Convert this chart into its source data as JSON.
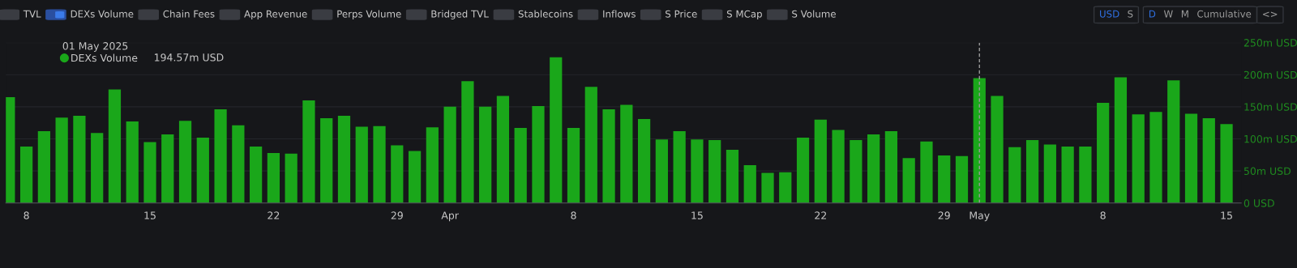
{
  "chart_data": {
    "type": "bar",
    "x": [
      "2025-03-07",
      "2025-03-08",
      "2025-03-09",
      "2025-03-10",
      "2025-03-11",
      "2025-03-12",
      "2025-03-13",
      "2025-03-14",
      "2025-03-15",
      "2025-03-16",
      "2025-03-17",
      "2025-03-18",
      "2025-03-19",
      "2025-03-20",
      "2025-03-21",
      "2025-03-22",
      "2025-03-23",
      "2025-03-24",
      "2025-03-25",
      "2025-03-26",
      "2025-03-27",
      "2025-03-28",
      "2025-03-29",
      "2025-03-30",
      "2025-03-31",
      "2025-04-01",
      "2025-04-02",
      "2025-04-03",
      "2025-04-04",
      "2025-04-05",
      "2025-04-06",
      "2025-04-07",
      "2025-04-08",
      "2025-04-09",
      "2025-04-10",
      "2025-04-11",
      "2025-04-12",
      "2025-04-13",
      "2025-04-14",
      "2025-04-15",
      "2025-04-16",
      "2025-04-17",
      "2025-04-18",
      "2025-04-19",
      "2025-04-20",
      "2025-04-21",
      "2025-04-22",
      "2025-04-23",
      "2025-04-24",
      "2025-04-25",
      "2025-04-26",
      "2025-04-27",
      "2025-04-28",
      "2025-04-29",
      "2025-04-30",
      "2025-05-01",
      "2025-05-02",
      "2025-05-03",
      "2025-05-04",
      "2025-05-05",
      "2025-05-06",
      "2025-05-07",
      "2025-05-08",
      "2025-05-09",
      "2025-05-10",
      "2025-05-11",
      "2025-05-12",
      "2025-05-13",
      "2025-05-14",
      "2025-05-15"
    ],
    "series": [
      {
        "name": "DEXs Volume",
        "color": "#1aa71a",
        "values": [
          165,
          88,
          112,
          133,
          136,
          109,
          177,
          127,
          95,
          107,
          128,
          102,
          146,
          121,
          88,
          78,
          77,
          160,
          132,
          136,
          119,
          120,
          90,
          81,
          118,
          150,
          190,
          150,
          167,
          117,
          151,
          227,
          117,
          181,
          146,
          153,
          131,
          99,
          112,
          99,
          98,
          83,
          59,
          47,
          48,
          102,
          130,
          114,
          98,
          107,
          112,
          70,
          96,
          74,
          73,
          194.57,
          167,
          87,
          98,
          91,
          88,
          88,
          156,
          196,
          138,
          142,
          191,
          139,
          132,
          123
        ]
      }
    ],
    "xlim": [
      "2025-03-06T20:00",
      "2025-05-15T20:00"
    ],
    "xticks": [
      {
        "value": "2025-03-08",
        "label": "8"
      },
      {
        "value": "2025-03-15",
        "label": "15"
      },
      {
        "value": "2025-03-22",
        "label": "22"
      },
      {
        "value": "2025-03-29",
        "label": "29"
      },
      {
        "value": "2025-04-01",
        "label": "Apr"
      },
      {
        "value": "2025-04-08",
        "label": "8"
      },
      {
        "value": "2025-04-15",
        "label": "15"
      },
      {
        "value": "2025-04-22",
        "label": "22"
      },
      {
        "value": "2025-04-29",
        "label": "29"
      },
      {
        "value": "2025-05-01",
        "label": "May"
      },
      {
        "value": "2025-05-08",
        "label": "8"
      },
      {
        "value": "2025-05-15",
        "label": "15"
      }
    ],
    "ylim": [
      0,
      250
    ],
    "yticks": [
      {
        "value": 0,
        "label": "0 USD"
      },
      {
        "value": 50,
        "label": "50m USD"
      },
      {
        "value": 100,
        "label": "100m USD"
      },
      {
        "value": 150,
        "label": "150m USD"
      },
      {
        "value": 200,
        "label": "200m USD"
      },
      {
        "value": 250,
        "label": "250m USD"
      }
    ],
    "grid": "y",
    "legend": "top left",
    "ref_lines": [
      {
        "axis": "x",
        "value": "2025-05-01",
        "color": "#9a9a9a",
        "line_style": "dashed"
      }
    ],
    "annotations": [
      "01 May 2025",
      "194.57m USD",
      "TVL",
      "DEXs Volume",
      "Chain Fees",
      "App Revenue",
      "Perps Volume",
      "Bridged TVL",
      "Stablecoins",
      "Inflows",
      "S Price",
      "S MCap",
      "S Volume",
      "USD",
      "S",
      "D",
      "W",
      "M",
      "Cumulative",
      "<>"
    ]
  }
}
